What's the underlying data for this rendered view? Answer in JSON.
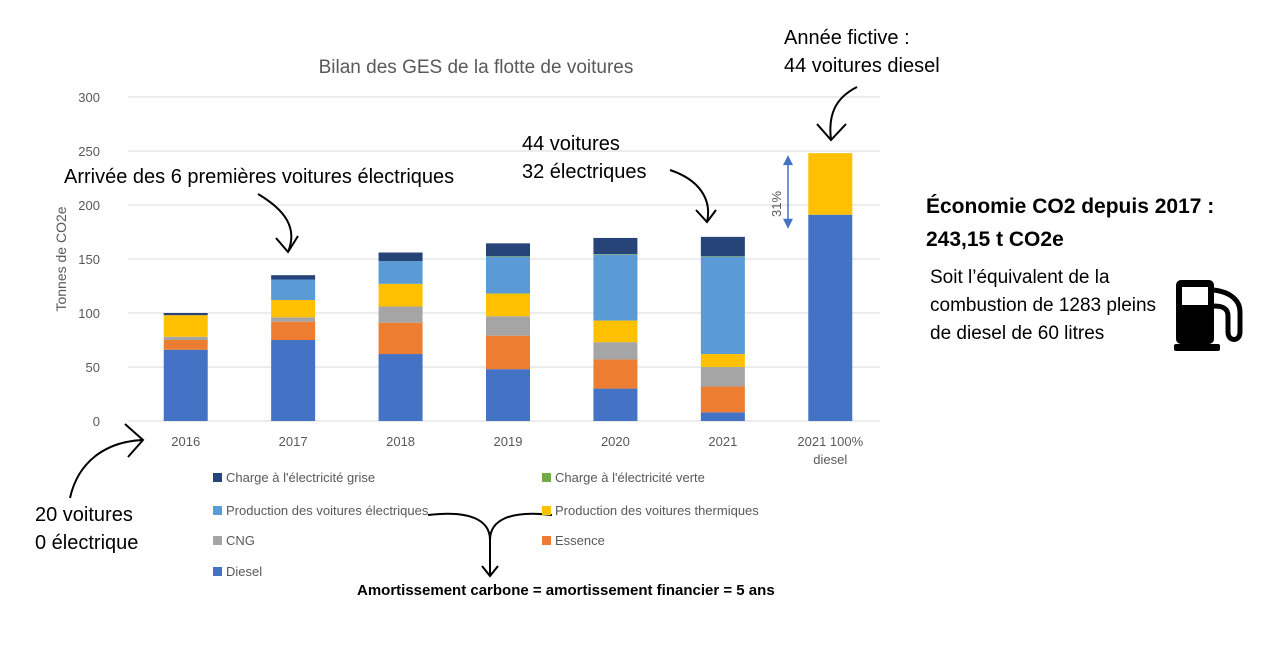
{
  "chart_data": {
    "type": "bar",
    "stacked": true,
    "title": "Bilan des GES de la flotte de voitures",
    "xlabel": "",
    "ylabel": "Tonnes de CO2e",
    "ylim": [
      0,
      300
    ],
    "yticks": [
      0,
      50,
      100,
      150,
      200,
      250,
      300
    ],
    "grid": true,
    "legend_position": "bottom",
    "categories": [
      "2016",
      "2017",
      "2018",
      "2019",
      "2020",
      "2021",
      "2021 100% diesel"
    ],
    "category_lines": [
      [
        "2016"
      ],
      [
        "2017"
      ],
      [
        "2018"
      ],
      [
        "2019"
      ],
      [
        "2020"
      ],
      [
        "2021"
      ],
      [
        "2021 100%",
        "diesel"
      ]
    ],
    "series": [
      {
        "name": "Diesel",
        "color": "#4472C4",
        "values": [
          66,
          75,
          62,
          48,
          30,
          8,
          191
        ]
      },
      {
        "name": "Essence",
        "color": "#ED7D31",
        "values": [
          9,
          17,
          29,
          31,
          27,
          24,
          0
        ]
      },
      {
        "name": "CNG",
        "color": "#A5A5A5",
        "values": [
          3,
          4,
          15,
          18,
          16,
          18,
          0
        ]
      },
      {
        "name": "Production des voitures thermiques",
        "color": "#FFC000",
        "values": [
          20,
          16,
          21,
          21,
          20,
          12,
          57
        ]
      },
      {
        "name": "Production des voitures électriques",
        "color": "#5B9BD5",
        "values": [
          0,
          19,
          21,
          34,
          61,
          90,
          0
        ]
      },
      {
        "name": "Charge à l'électricité verte",
        "color": "#70AD47",
        "values": [
          0,
          0,
          0,
          0.5,
          0.5,
          0.5,
          0
        ]
      },
      {
        "name": "Charge à l'électricité grise",
        "color": "#264478",
        "values": [
          2,
          4,
          8,
          12,
          15,
          18,
          0
        ]
      }
    ],
    "legend_order": [
      "Charge à l'électricité grise",
      "Charge à l'électricité verte",
      "Production des voitures électriques",
      "Production des voitures thermiques",
      "CNG",
      "Essence",
      "Diesel"
    ],
    "annotations": {
      "percent_arrow_label": "31%",
      "percent_arrow_range": [
        191,
        248
      ]
    }
  },
  "annotations": {
    "first_ev": "Arrivée des 6 premières voitures électriques",
    "fleet_2021_line1": "44 voitures",
    "fleet_2021_line2": "32 électriques",
    "fictive_line1": "Année fictive :",
    "fictive_line2": "44 voitures diesel",
    "fleet_2016_line1": "20 voitures",
    "fleet_2016_line2": "0 électrique"
  },
  "savings": {
    "title_line1": "Économie CO2 depuis 2017 :",
    "title_line2": "243,15 t CO2e",
    "text": "Soit l’équivalent de la combustion de 1283 pleins de diesel de 60 litres",
    "icon": "fuel-pump-icon"
  },
  "footer": "Amortissement carbone = amortissement financier = 5 ans",
  "colors": {
    "text_gray": "#595959",
    "gridline": "#D9D9D9",
    "arrow_blue": "#4472C4"
  }
}
